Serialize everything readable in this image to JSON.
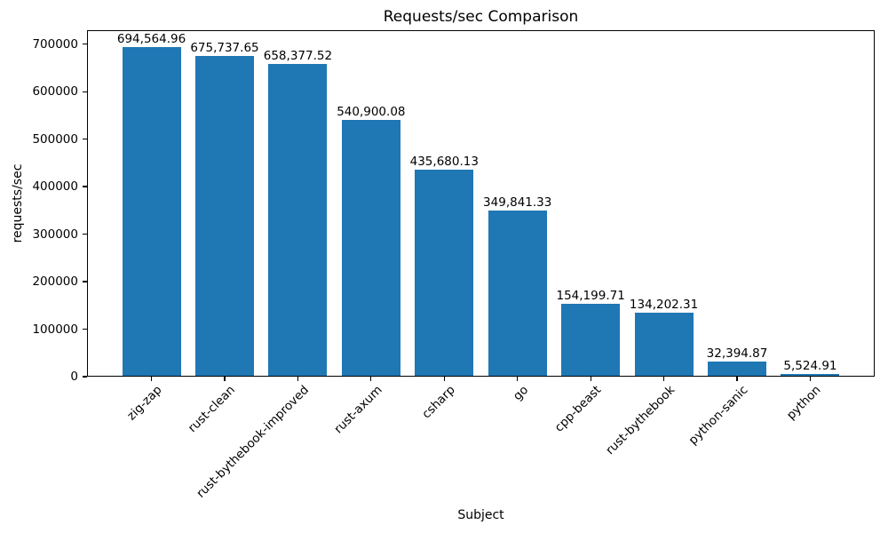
{
  "chart_data": {
    "type": "bar",
    "title": "Requests/sec Comparison",
    "xlabel": "Subject",
    "ylabel": "requests/sec",
    "categories": [
      "zig-zap",
      "rust-clean",
      "rust-bythebook-improved",
      "rust-axum",
      "csharp",
      "go",
      "cpp-beast",
      "rust-bythebook",
      "python-sanic",
      "python"
    ],
    "values": [
      694564.96,
      675737.65,
      658377.52,
      540900.08,
      435680.13,
      349841.33,
      154199.71,
      134202.31,
      32394.87,
      5524.91
    ],
    "value_labels": [
      "694,564.96",
      "675,737.65",
      "658,377.52",
      "540,900.08",
      "435,680.13",
      "349,841.33",
      "154,199.71",
      "134,202.31",
      "32,394.87",
      "5,524.91"
    ],
    "ylim": [
      0,
      729293
    ],
    "yticks": [
      0,
      100000,
      200000,
      300000,
      400000,
      500000,
      600000,
      700000
    ],
    "bar_color": "#1f77b4",
    "axis_color": "#000000",
    "grid": false,
    "legend": null
  }
}
